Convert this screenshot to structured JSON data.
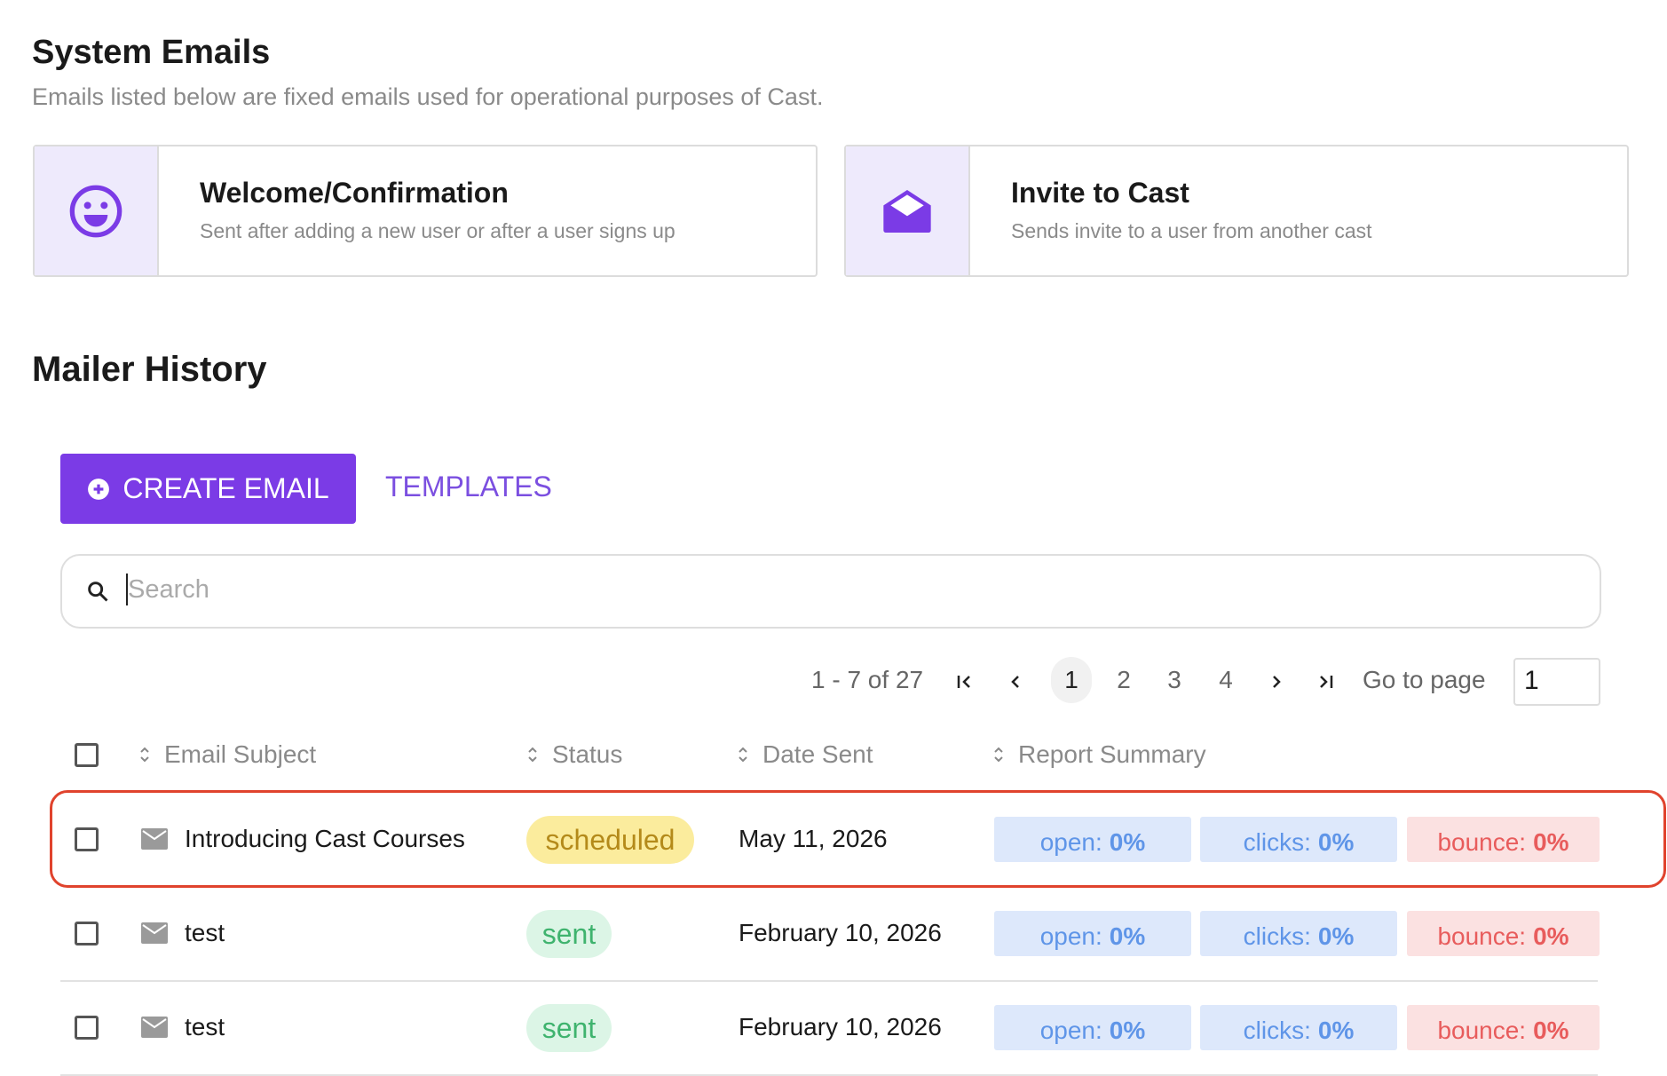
{
  "system_emails": {
    "title": "System Emails",
    "subtitle": "Emails listed below are fixed emails used for operational purposes of Cast.",
    "cards": [
      {
        "title": "Welcome/Confirmation",
        "description": "Sent after adding a new user or after a user signs up"
      },
      {
        "title": "Invite to Cast",
        "description": "Sends invite to a user from another cast"
      }
    ]
  },
  "mailer_history": {
    "title": "Mailer History",
    "create_button": "CREATE EMAIL",
    "templates_button": "TEMPLATES",
    "search_placeholder": "Search",
    "pagination": {
      "range": "1 - 7 of 27",
      "pages": [
        "1",
        "2",
        "3",
        "4"
      ],
      "go_to_page": "Go to page",
      "page_input": "1"
    },
    "table": {
      "columns": [
        "Email Subject",
        "Status",
        "Date Sent",
        "Report Summary"
      ],
      "rows": [
        {
          "subject": "Introducing Cast Courses",
          "status": "scheduled",
          "date": "May 11, 2026",
          "report": [
            {
              "label": "open:",
              "value": "0%"
            },
            {
              "label": "clicks:",
              "value": "0%"
            },
            {
              "label": "bounce:",
              "value": "0%"
            }
          ]
        },
        {
          "subject": "test",
          "status": "sent",
          "date": "February 10, 2026",
          "report": [
            {
              "label": "open:",
              "value": "0%"
            },
            {
              "label": "clicks:",
              "value": "0%"
            },
            {
              "label": "bounce:",
              "value": "0%"
            }
          ]
        },
        {
          "subject": "test",
          "status": "sent",
          "date": "February 10, 2026",
          "report": [
            {
              "label": "open:",
              "value": "0%"
            },
            {
              "label": "clicks:",
              "value": "0%"
            },
            {
              "label": "bounce:",
              "value": "0%"
            }
          ]
        }
      ]
    }
  }
}
